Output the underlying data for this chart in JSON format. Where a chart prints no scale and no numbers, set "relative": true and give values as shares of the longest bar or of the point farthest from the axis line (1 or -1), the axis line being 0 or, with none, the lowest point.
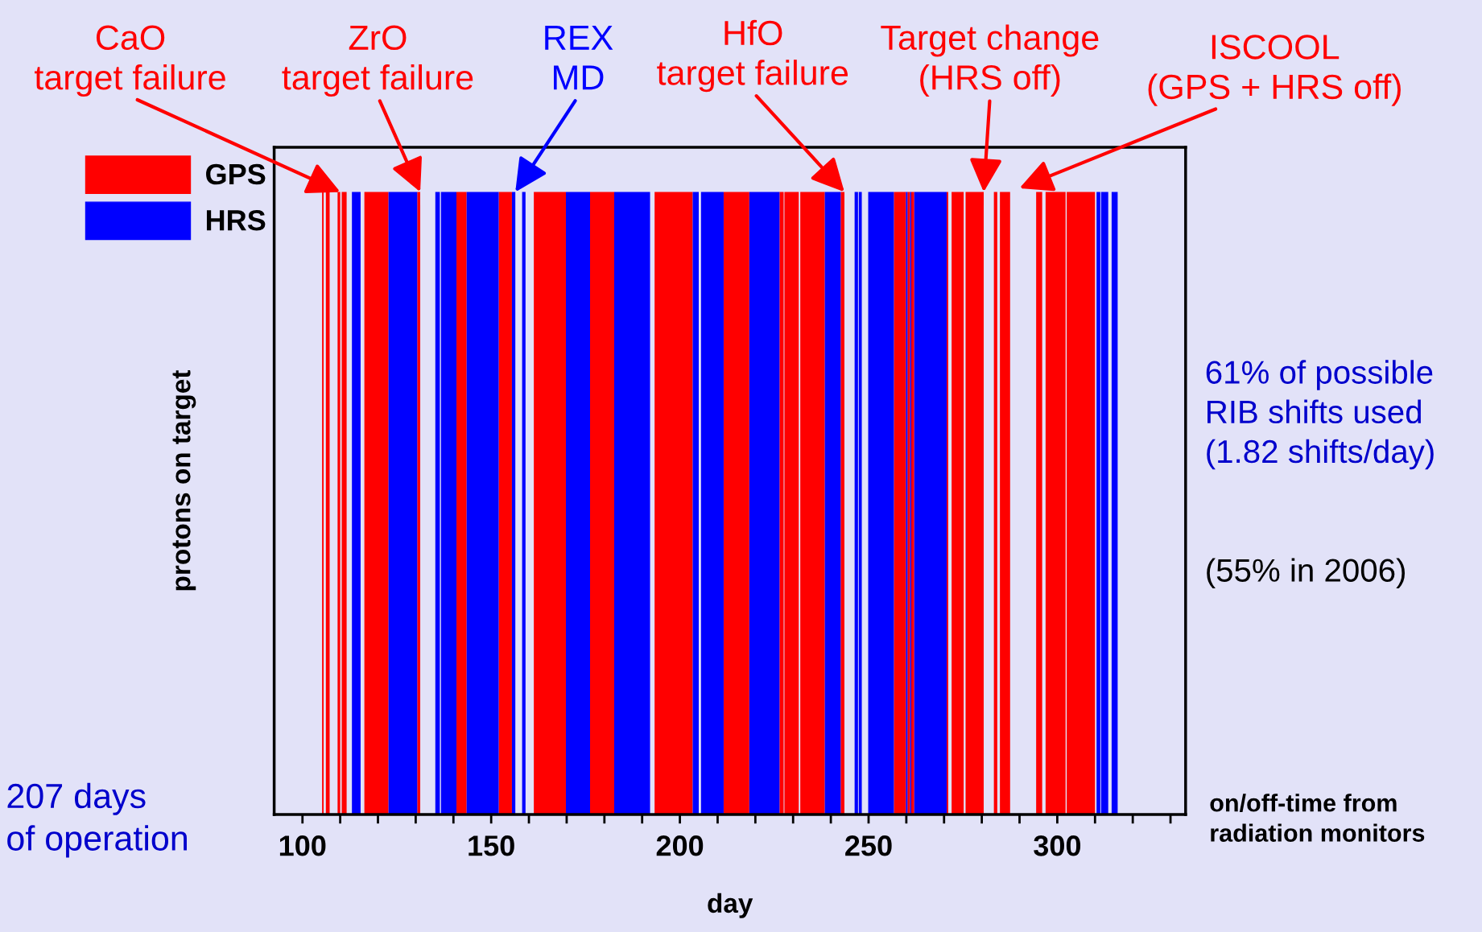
{
  "chart_data": {
    "type": "area",
    "relative": true,
    "tick_labels": "x",
    "xlabel": "day",
    "ylabel": "protons on target",
    "xlim": [
      92.5,
      334
    ],
    "xticks": [
      100,
      {
        "value": 110,
        "label": null
      },
      {
        "value": 120,
        "label": null
      },
      {
        "value": 130,
        "label": null
      },
      {
        "value": 140,
        "label": null
      },
      150,
      {
        "value": 160,
        "label": null
      },
      {
        "value": 170,
        "label": null
      },
      {
        "value": 180,
        "label": null
      },
      {
        "value": 190,
        "label": null
      },
      200,
      {
        "value": 210,
        "label": null
      },
      {
        "value": 220,
        "label": null
      },
      {
        "value": 230,
        "label": null
      },
      {
        "value": 240,
        "label": null
      },
      250,
      {
        "value": 260,
        "label": null
      },
      {
        "value": 270,
        "label": null
      },
      {
        "value": 280,
        "label": null
      },
      {
        "value": 290,
        "label": null
      },
      300,
      {
        "value": 310,
        "label": null
      },
      {
        "value": 320,
        "label": null
      },
      {
        "value": 330,
        "label": null
      }
    ],
    "series": [
      {
        "name": "GPS",
        "color": "#ff0000",
        "x": [
          105.2,
          105.2,
          105.6,
          105.6,
          106.2,
          106.2,
          107.2,
          107.2,
          109.3,
          109.3,
          110.0,
          110.0,
          110.4,
          110.4,
          111.7,
          111.7,
          116.4,
          116.4,
          122.8,
          122.8,
          130.4,
          130.4,
          131.2,
          131.2,
          140.8,
          140.8,
          143.5,
          143.5,
          152.0,
          152.0,
          155.5,
          155.5,
          161.3,
          161.3,
          169.8,
          169.8,
          176.2,
          176.2,
          182.6,
          182.6,
          193.3,
          193.3,
          203.4,
          203.4,
          211.6,
          211.6,
          218.4,
          218.4,
          226.4,
          226.4,
          227.5,
          227.5,
          227.7,
          227.7,
          231.5,
          231.5,
          231.9,
          231.9,
          238.4,
          238.4,
          242.6,
          242.6,
          243.6,
          243.6,
          256.7,
          256.7,
          259.9,
          259.9,
          260.3,
          260.3,
          261.0,
          261.0,
          261.3,
          261.3,
          262.1,
          262.1,
          270.7,
          270.7,
          271.1,
          271.1,
          272.0,
          272.0,
          275.2,
          275.2,
          275.7,
          275.7,
          280.5,
          280.5,
          283.2,
          283.2,
          284.1,
          284.1,
          284.8,
          284.8,
          287.5,
          287.5,
          294.4,
          294.4,
          296.0,
          296.0,
          296.9,
          296.9,
          302.2,
          302.2,
          302.5,
          302.5,
          310.0,
          310.0
        ],
        "values": [
          0,
          1,
          1,
          0,
          0,
          1,
          1,
          0,
          0,
          1,
          1,
          0,
          0,
          1,
          1,
          0,
          0,
          1,
          1,
          0,
          0,
          1,
          1,
          0,
          0,
          1,
          1,
          0,
          0,
          1,
          1,
          0,
          0,
          1,
          1,
          0,
          0,
          1,
          1,
          0,
          0,
          1,
          1,
          0,
          0,
          1,
          1,
          0,
          0,
          1,
          1,
          0,
          0,
          1,
          1,
          0,
          0,
          1,
          1,
          0,
          0,
          1,
          1,
          0,
          0,
          1,
          1,
          0,
          0,
          1,
          1,
          0,
          0,
          1,
          1,
          0,
          0,
          1,
          1,
          0,
          0,
          1,
          1,
          0,
          0,
          1,
          1,
          0,
          0,
          1,
          1,
          0,
          0,
          1,
          1,
          0,
          0,
          1,
          1,
          0,
          0,
          1,
          1,
          0,
          0,
          1,
          1,
          0
        ]
      },
      {
        "name": "HRS",
        "color": "#0000ff",
        "x": [
          113.1,
          113.1,
          115.4,
          115.4,
          122.8,
          122.8,
          130.4,
          130.4,
          135.2,
          135.2,
          136.4,
          136.4,
          136.7,
          136.7,
          140.8,
          140.8,
          143.5,
          143.5,
          152.0,
          152.0,
          155.5,
          155.5,
          156.4,
          156.4,
          158.2,
          158.2,
          159.1,
          159.1,
          169.8,
          169.8,
          176.2,
          176.2,
          182.6,
          182.6,
          192.1,
          192.1,
          203.4,
          203.4,
          205.0,
          205.0,
          205.6,
          205.6,
          211.6,
          211.6,
          218.4,
          218.4,
          226.4,
          226.4,
          238.4,
          238.4,
          242.6,
          242.6,
          246.3,
          246.3,
          247.2,
          247.2,
          247.4,
          247.4,
          248.2,
          248.2,
          249.9,
          249.9,
          256.7,
          256.7,
          259.9,
          259.9,
          260.3,
          260.3,
          261.0,
          261.0,
          261.3,
          261.3,
          262.1,
          262.1,
          270.7,
          270.7,
          310.4,
          310.4,
          311.4,
          311.4,
          311.6,
          311.6,
          313.5,
          313.5,
          314.4,
          314.4,
          316.0,
          316.0
        ],
        "values": [
          0,
          1,
          1,
          0,
          0,
          1,
          1,
          0,
          0,
          1,
          1,
          0,
          0,
          1,
          1,
          0,
          0,
          1,
          1,
          0,
          0,
          1,
          1,
          0,
          0,
          1,
          1,
          0,
          0,
          1,
          1,
          0,
          0,
          1,
          1,
          0,
          0,
          1,
          1,
          0,
          0,
          1,
          1,
          0,
          0,
          1,
          1,
          0,
          0,
          1,
          1,
          0,
          0,
          1,
          1,
          0,
          0,
          1,
          1,
          0,
          0,
          1,
          1,
          0,
          0,
          1,
          1,
          0,
          0,
          1,
          1,
          0,
          0,
          1,
          1,
          0,
          0,
          1,
          1,
          0,
          0,
          1,
          1,
          0,
          0,
          1,
          1,
          0
        ]
      }
    ],
    "legend": "top left",
    "annotations": [
      "CaO\ntarget failure",
      "ZrO\ntarget failure",
      "REX\nMD",
      "HfO\ntarget failure",
      "Target change\n(HRS off)",
      "ISCOOL\n(GPS + HRS off)",
      "61% of possible\nRIB shifts used\n(1.82 shifts/day)",
      "(55% in 2006)",
      "207 days\nof operation",
      "on/off-time from\nradiation monitors"
    ]
  }
}
